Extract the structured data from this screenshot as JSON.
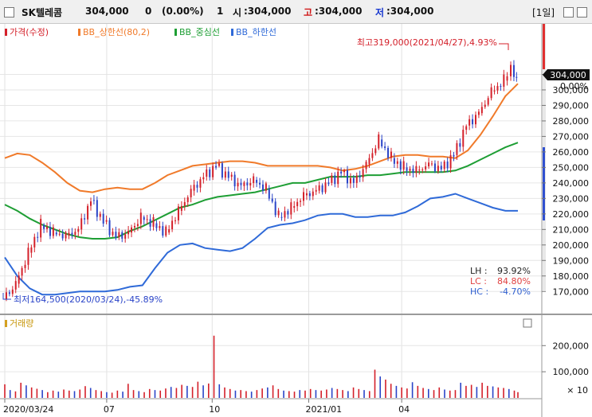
{
  "header": {
    "name": "SK텔레콤",
    "price": "304,000",
    "change": "0",
    "change_pct": "(0.00%)",
    "volume": "1",
    "open_label": "시",
    "open_value": ":304,000",
    "high_label": "고",
    "high_value": ":304,000",
    "low_label": "저",
    "low_value": ":304,000",
    "period": "1일"
  },
  "chart_data": [
    {
      "type": "line",
      "legend": [
        "가격(수정)",
        "BB_상한선(80,2)",
        "BB_중심선",
        "BB_하한선"
      ],
      "colors": {
        "price_up": "#d4202a",
        "price_down": "#2a44c8",
        "upper": "#f07a2a",
        "middle": "#1e9e34",
        "lower": "#2f6ad8"
      },
      "yticks": [
        "310,000",
        "300,000",
        "290,000",
        "280,000",
        "270,000",
        "260,000",
        "250,000",
        "240,000",
        "230,000",
        "220,000",
        "210,000",
        "200,000",
        "190,000",
        "180,000",
        "170,000"
      ],
      "xticks": [
        "2020/03/24",
        "07",
        "10",
        "2021/01",
        "04"
      ],
      "ylim": [
        165000,
        320000
      ],
      "last_price_tag": "304,000",
      "pct_label": "0.00%",
      "max_annotation": "최고319,000(2021/04/27),4.93%",
      "min_annotation": "최저164,500(2020/03/24),-45.89%",
      "stats": [
        {
          "label": "LH :",
          "value": "93.92%",
          "color": "#222222"
        },
        {
          "label": "LC :",
          "value": "84.80%",
          "color": "#e04040"
        },
        {
          "label": "HC :",
          "value": "-4.70%",
          "color": "#3060d0"
        }
      ],
      "upper_band": [
        [
          0,
          256000
        ],
        [
          7,
          259000
        ],
        [
          14,
          258000
        ],
        [
          21,
          253000
        ],
        [
          28,
          247000
        ],
        [
          35,
          240000
        ],
        [
          42,
          235000
        ],
        [
          49,
          234000
        ],
        [
          56,
          236000
        ],
        [
          63,
          237000
        ],
        [
          70,
          236000
        ],
        [
          77,
          236000
        ],
        [
          84,
          240000
        ],
        [
          91,
          245000
        ],
        [
          98,
          248000
        ],
        [
          105,
          251000
        ],
        [
          112,
          252000
        ],
        [
          119,
          253000
        ],
        [
          126,
          254000
        ],
        [
          133,
          254000
        ],
        [
          140,
          253000
        ],
        [
          147,
          251000
        ],
        [
          154,
          251000
        ],
        [
          161,
          251000
        ],
        [
          168,
          251000
        ],
        [
          175,
          251000
        ],
        [
          182,
          250000
        ],
        [
          189,
          248000
        ],
        [
          196,
          249000
        ],
        [
          203,
          251000
        ],
        [
          210,
          254000
        ],
        [
          217,
          257000
        ],
        [
          224,
          258000
        ],
        [
          231,
          258000
        ],
        [
          238,
          257000
        ],
        [
          245,
          257000
        ],
        [
          252,
          256000
        ],
        [
          259,
          261000
        ],
        [
          266,
          271000
        ],
        [
          273,
          283000
        ],
        [
          280,
          296000
        ],
        [
          287,
          304000
        ]
      ],
      "middle_band": [
        [
          0,
          226000
        ],
        [
          7,
          222000
        ],
        [
          14,
          217000
        ],
        [
          21,
          213000
        ],
        [
          28,
          210000
        ],
        [
          35,
          207000
        ],
        [
          42,
          205000
        ],
        [
          49,
          204000
        ],
        [
          56,
          204000
        ],
        [
          63,
          205000
        ],
        [
          70,
          209000
        ],
        [
          77,
          212000
        ],
        [
          84,
          216000
        ],
        [
          91,
          220000
        ],
        [
          98,
          224000
        ],
        [
          105,
          226000
        ],
        [
          112,
          229000
        ],
        [
          119,
          231000
        ],
        [
          126,
          232000
        ],
        [
          133,
          233000
        ],
        [
          140,
          234000
        ],
        [
          147,
          236000
        ],
        [
          154,
          238000
        ],
        [
          161,
          240000
        ],
        [
          168,
          240000
        ],
        [
          175,
          242000
        ],
        [
          182,
          244000
        ],
        [
          189,
          244000
        ],
        [
          196,
          244000
        ],
        [
          203,
          245000
        ],
        [
          210,
          245000
        ],
        [
          217,
          246000
        ],
        [
          224,
          247000
        ],
        [
          231,
          247000
        ],
        [
          238,
          247000
        ],
        [
          245,
          247000
        ],
        [
          252,
          248000
        ],
        [
          259,
          251000
        ],
        [
          266,
          255000
        ],
        [
          273,
          259000
        ],
        [
          280,
          263000
        ],
        [
          287,
          266000
        ]
      ],
      "lower_band": [
        [
          0,
          192000
        ],
        [
          7,
          180000
        ],
        [
          14,
          172000
        ],
        [
          21,
          168000
        ],
        [
          28,
          168000
        ],
        [
          35,
          169000
        ],
        [
          42,
          170000
        ],
        [
          49,
          170000
        ],
        [
          56,
          170000
        ],
        [
          63,
          171000
        ],
        [
          70,
          173000
        ],
        [
          77,
          174000
        ],
        [
          84,
          185000
        ],
        [
          91,
          195000
        ],
        [
          98,
          200000
        ],
        [
          105,
          201000
        ],
        [
          112,
          198000
        ],
        [
          119,
          197000
        ],
        [
          126,
          196000
        ],
        [
          133,
          198000
        ],
        [
          140,
          204000
        ],
        [
          147,
          211000
        ],
        [
          154,
          213000
        ],
        [
          161,
          214000
        ],
        [
          168,
          216000
        ],
        [
          175,
          219000
        ],
        [
          182,
          220000
        ],
        [
          189,
          220000
        ],
        [
          196,
          218000
        ],
        [
          203,
          218000
        ],
        [
          210,
          219000
        ],
        [
          217,
          219000
        ],
        [
          224,
          221000
        ],
        [
          231,
          225000
        ],
        [
          238,
          230000
        ],
        [
          245,
          231000
        ],
        [
          252,
          233000
        ],
        [
          259,
          230000
        ],
        [
          266,
          227000
        ],
        [
          273,
          224000
        ],
        [
          280,
          222000
        ],
        [
          287,
          222000
        ]
      ],
      "price": [
        [
          0,
          165000
        ],
        [
          7,
          175000
        ],
        [
          14,
          195000
        ],
        [
          21,
          213000
        ],
        [
          28,
          208000
        ],
        [
          35,
          206000
        ],
        [
          42,
          210000
        ],
        [
          49,
          229000
        ],
        [
          56,
          215000
        ],
        [
          63,
          205000
        ],
        [
          70,
          208000
        ],
        [
          77,
          218000
        ],
        [
          84,
          214000
        ],
        [
          91,
          208000
        ],
        [
          98,
          222000
        ],
        [
          105,
          235000
        ],
        [
          112,
          244000
        ],
        [
          119,
          251000
        ],
        [
          126,
          244000
        ],
        [
          133,
          238000
        ],
        [
          140,
          242000
        ],
        [
          147,
          236000
        ],
        [
          154,
          218000
        ],
        [
          161,
          224000
        ],
        [
          168,
          232000
        ],
        [
          175,
          235000
        ],
        [
          182,
          240000
        ],
        [
          189,
          247000
        ],
        [
          196,
          240000
        ],
        [
          203,
          252000
        ],
        [
          210,
          268000
        ],
        [
          217,
          256000
        ],
        [
          224,
          250000
        ],
        [
          231,
          248000
        ],
        [
          238,
          252000
        ],
        [
          245,
          249000
        ],
        [
          252,
          258000
        ],
        [
          259,
          277000
        ],
        [
          266,
          285000
        ],
        [
          273,
          299000
        ],
        [
          280,
          306000
        ],
        [
          284,
          316000
        ],
        [
          287,
          304000
        ]
      ]
    },
    {
      "type": "bar",
      "legend": [
        "거래량"
      ],
      "unit": "× 10",
      "yticks": [
        "200,000",
        "100,000"
      ],
      "ylim": [
        0,
        280000
      ],
      "values": [
        [
          0,
          52000
        ],
        [
          3,
          30000
        ],
        [
          6,
          25000
        ],
        [
          9,
          58000
        ],
        [
          12,
          48000
        ],
        [
          15,
          40000
        ],
        [
          18,
          35000
        ],
        [
          21,
          30000
        ],
        [
          24,
          22000
        ],
        [
          27,
          28000
        ],
        [
          30,
          24000
        ],
        [
          33,
          32000
        ],
        [
          36,
          28000
        ],
        [
          39,
          26000
        ],
        [
          42,
          32000
        ],
        [
          45,
          45000
        ],
        [
          48,
          38000
        ],
        [
          51,
          30000
        ],
        [
          54,
          26000
        ],
        [
          57,
          22000
        ],
        [
          60,
          20000
        ],
        [
          63,
          28000
        ],
        [
          66,
          24000
        ],
        [
          69,
          54000
        ],
        [
          72,
          30000
        ],
        [
          75,
          26000
        ],
        [
          78,
          22000
        ],
        [
          81,
          34000
        ],
        [
          84,
          30000
        ],
        [
          87,
          28000
        ],
        [
          90,
          36000
        ],
        [
          93,
          42000
        ],
        [
          96,
          38000
        ],
        [
          99,
          50000
        ],
        [
          102,
          46000
        ],
        [
          105,
          42000
        ],
        [
          108,
          62000
        ],
        [
          111,
          48000
        ],
        [
          114,
          55000
        ],
        [
          117,
          238000
        ],
        [
          120,
          52000
        ],
        [
          123,
          40000
        ],
        [
          126,
          34000
        ],
        [
          129,
          28000
        ],
        [
          132,
          30000
        ],
        [
          135,
          26000
        ],
        [
          138,
          24000
        ],
        [
          141,
          30000
        ],
        [
          144,
          36000
        ],
        [
          147,
          40000
        ],
        [
          150,
          48000
        ],
        [
          153,
          34000
        ],
        [
          156,
          28000
        ],
        [
          159,
          26000
        ],
        [
          162,
          24000
        ],
        [
          165,
          30000
        ],
        [
          168,
          28000
        ],
        [
          171,
          34000
        ],
        [
          174,
          30000
        ],
        [
          177,
          28000
        ],
        [
          180,
          32000
        ],
        [
          183,
          38000
        ],
        [
          186,
          34000
        ],
        [
          189,
          30000
        ],
        [
          192,
          26000
        ],
        [
          195,
          40000
        ],
        [
          198,
          34000
        ],
        [
          201,
          30000
        ],
        [
          204,
          26000
        ],
        [
          207,
          108000
        ],
        [
          210,
          82000
        ],
        [
          213,
          70000
        ],
        [
          216,
          54000
        ],
        [
          219,
          46000
        ],
        [
          222,
          40000
        ],
        [
          225,
          36000
        ],
        [
          228,
          60000
        ],
        [
          231,
          46000
        ],
        [
          234,
          38000
        ],
        [
          237,
          34000
        ],
        [
          240,
          30000
        ],
        [
          243,
          40000
        ],
        [
          246,
          32000
        ],
        [
          249,
          28000
        ],
        [
          252,
          30000
        ],
        [
          255,
          58000
        ],
        [
          258,
          46000
        ],
        [
          261,
          50000
        ],
        [
          264,
          42000
        ],
        [
          267,
          58000
        ],
        [
          270,
          46000
        ],
        [
          273,
          44000
        ],
        [
          276,
          40000
        ],
        [
          279,
          38000
        ],
        [
          282,
          34000
        ],
        [
          285,
          28000
        ],
        [
          287,
          22000
        ]
      ]
    }
  ]
}
